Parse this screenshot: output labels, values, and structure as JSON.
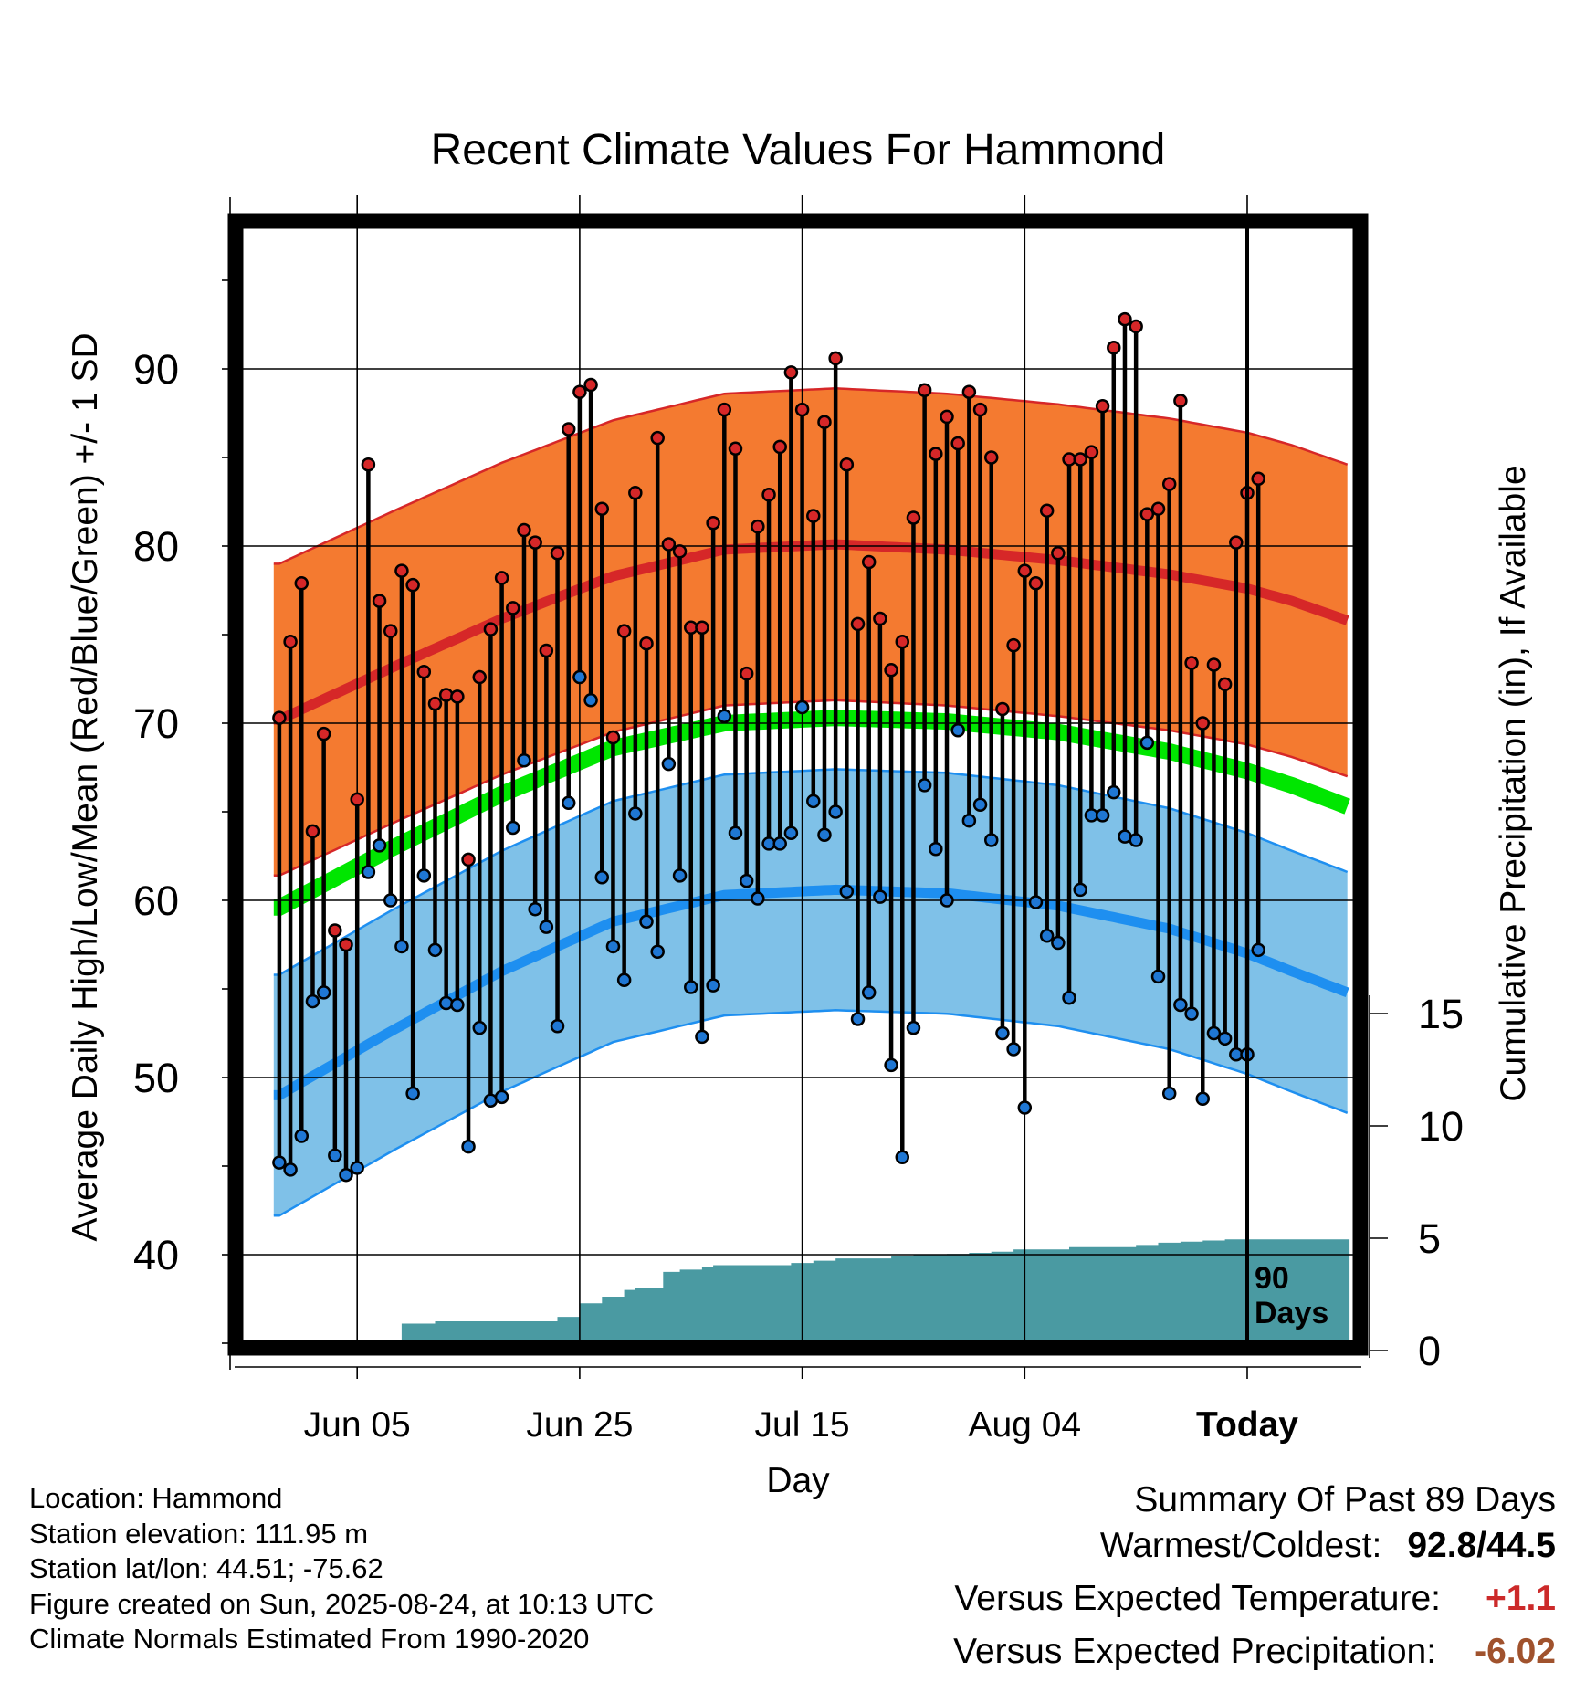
{
  "chart_data": {
    "type": "line",
    "title": "Recent Climate Values For Hammond",
    "xlabel": "Day",
    "ylabel_left": "Average Daily High/Low/Mean (Red/Blue/Green) +/- 1 SD",
    "ylabel_right": "Cumulative Precipitation (in), If Available",
    "x_range_days": [
      -87,
      12
    ],
    "ylim_left": [
      35,
      98
    ],
    "ylim_right": [
      0,
      30
    ],
    "yticks_left": [
      40,
      50,
      60,
      70,
      80,
      90
    ],
    "yticks_right": [
      0,
      5,
      10,
      15
    ],
    "x_tick_labels": [
      {
        "label": "Jun 05",
        "day": -80
      },
      {
        "label": "Jun 25",
        "day": -60
      },
      {
        "label": "Jul 15",
        "day": -40
      },
      {
        "label": "Aug 04",
        "day": -20
      },
      {
        "label": "Today",
        "day": 0
      }
    ],
    "grid": true,
    "today_marker_label": "90 Days",
    "normals": {
      "day": [
        -87,
        -77,
        -67,
        -57,
        -47,
        -37,
        -27,
        -17,
        -7,
        0,
        4,
        9
      ],
      "high_mean": [
        70.2,
        73.1,
        75.9,
        78.3,
        79.8,
        80.1,
        79.8,
        79.2,
        78.4,
        77.6,
        76.9,
        75.8
      ],
      "high_sd": 8.8,
      "low_mean": [
        49.0,
        52.6,
        56.0,
        58.8,
        60.3,
        60.6,
        60.4,
        59.7,
        58.4,
        57.0,
        56.0,
        54.8
      ],
      "low_sd": 6.8,
      "mean": [
        59.6,
        62.9,
        66.0,
        68.6,
        70.0,
        70.3,
        70.1,
        69.5,
        68.4,
        67.3,
        66.5,
        65.3
      ]
    },
    "series": [
      {
        "name": "Daily High",
        "color": "#d62728",
        "values": [
          70.3,
          74.6,
          77.9,
          63.9,
          69.4,
          58.3,
          57.5,
          65.7,
          84.6,
          76.9,
          75.2,
          78.6,
          77.8,
          72.9,
          71.1,
          71.6,
          71.5,
          62.3,
          72.6,
          75.3,
          78.2,
          76.5,
          80.9,
          80.2,
          74.1,
          79.6,
          86.6,
          88.7,
          89.1,
          82.1,
          69.2,
          75.2,
          83.0,
          74.5,
          86.1,
          80.1,
          79.7,
          75.4,
          75.4,
          81.3,
          87.7,
          85.5,
          72.8,
          81.1,
          82.9,
          85.6,
          89.8,
          87.7,
          81.7,
          87.0,
          90.6,
          84.6,
          75.6,
          79.1,
          75.9,
          73.0,
          74.6,
          81.6,
          88.8,
          85.2,
          87.3,
          85.8,
          88.7,
          87.7,
          85.0,
          70.8,
          74.4,
          78.6,
          77.9,
          82.0,
          79.6,
          84.9,
          84.9,
          85.3,
          87.9,
          91.2,
          92.8,
          92.4,
          81.8,
          82.1,
          83.5,
          88.2,
          73.4,
          70.0,
          73.3,
          72.2,
          80.2,
          83.0,
          83.8
        ]
      },
      {
        "name": "Daily Low",
        "color": "#1f77d4",
        "values": [
          45.2,
          44.8,
          46.7,
          54.3,
          54.8,
          45.6,
          44.5,
          44.9,
          61.6,
          63.1,
          60.0,
          57.4,
          49.1,
          61.4,
          57.2,
          54.2,
          54.1,
          46.1,
          52.8,
          48.7,
          48.9,
          64.1,
          67.9,
          59.5,
          58.5,
          52.9,
          65.5,
          72.6,
          71.3,
          61.3,
          57.4,
          55.5,
          64.9,
          58.8,
          57.1,
          67.7,
          61.4,
          55.1,
          52.3,
          55.2,
          70.4,
          63.8,
          61.1,
          60.1,
          63.2,
          63.2,
          63.8,
          70.9,
          65.6,
          63.7,
          65.0,
          60.5,
          53.3,
          54.8,
          60.2,
          50.7,
          45.5,
          52.8,
          66.5,
          62.9,
          60.0,
          69.6,
          64.5,
          65.4,
          63.4,
          52.5,
          51.6,
          48.3,
          59.9,
          58.0,
          57.6,
          54.5,
          60.6,
          64.8,
          64.8,
          66.1,
          63.6,
          63.4,
          68.9,
          55.7,
          49.1,
          54.1,
          53.6,
          48.8,
          52.5,
          52.2,
          51.3,
          51.3,
          57.2
        ]
      },
      {
        "name": "Cumulative Precipitation",
        "color": "#4a9aa2",
        "steps": [
          [
            -87,
            0.0
          ],
          [
            -83,
            0.4
          ],
          [
            -76,
            1.2
          ],
          [
            -73,
            1.3
          ],
          [
            -76.5,
            1.3
          ],
          [
            -62,
            1.5
          ],
          [
            -63.5,
            2.0
          ],
          [
            -60,
            2.1
          ],
          [
            -64,
            2.3
          ],
          [
            -58,
            2.4
          ],
          [
            -56,
            2.7
          ],
          [
            -55,
            2.8
          ],
          [
            -58.5,
            3.0
          ],
          [
            -55.5,
            3.4
          ],
          [
            -52.5,
            3.5
          ],
          [
            -51,
            3.6
          ],
          [
            -49,
            3.7
          ],
          [
            -48,
            3.8
          ],
          [
            -41,
            3.9
          ],
          [
            -39,
            4.0
          ],
          [
            -40,
            4.05
          ],
          [
            -37,
            4.1
          ],
          [
            -32,
            4.2
          ],
          [
            -30,
            4.25
          ],
          [
            -27,
            4.3
          ],
          [
            -25,
            4.35
          ],
          [
            -23,
            4.4
          ],
          [
            -21,
            4.5
          ],
          [
            -16,
            4.6
          ],
          [
            -10,
            4.7
          ],
          [
            -8,
            4.8
          ],
          [
            -6,
            4.85
          ],
          [
            -4,
            4.9
          ],
          [
            -2,
            4.95
          ],
          [
            0,
            4.95
          ],
          [
            9,
            4.95
          ]
        ]
      }
    ]
  },
  "summary": {
    "title": "Summary Of Past 89 Days",
    "warmest_coldest_label": "Warmest/Coldest:",
    "warmest_coldest_value": "92.8/44.5",
    "temp_label": "Versus Expected Temperature:",
    "temp_value": "+1.1",
    "temp_color": "#cc2a2a",
    "precip_label": "Versus Expected Precipitation:",
    "precip_value": "-6.02",
    "precip_color": "#a0522d"
  },
  "info": {
    "location": "Location: Hammond",
    "elevation": "Station elevation: 111.95 m",
    "latlon": "Station lat/lon: 44.51; -75.62",
    "created": "Figure created on Sun, 2025-08-24, at 10:13 UTC",
    "normals": "Climate Normals Estimated From 1990-2020"
  },
  "colors": {
    "high_band": "#f47a30",
    "high_line": "#d62728",
    "low_band": "#7fc1e8",
    "low_line": "#1e8ff0",
    "mean_line": "#00e600",
    "precip_fill": "#4a9aa2"
  }
}
